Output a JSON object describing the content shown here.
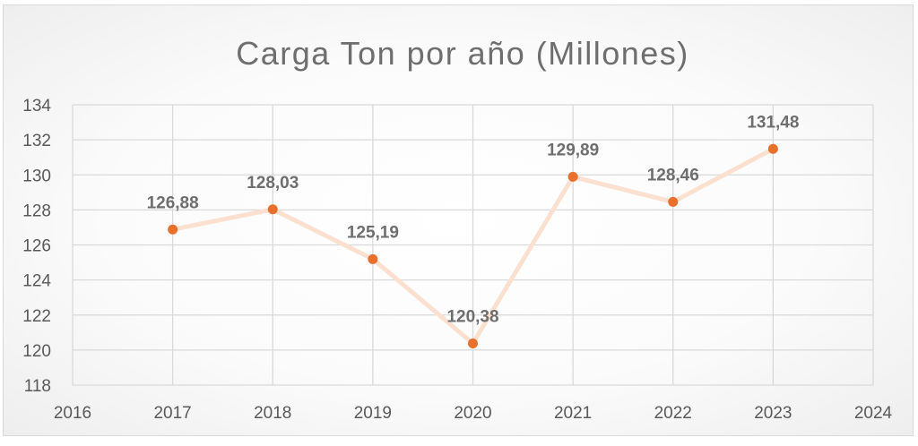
{
  "chart_data": {
    "type": "scatter",
    "title": "Carga Ton por año (Millones)",
    "xlabel": "",
    "ylabel": "",
    "xlim": [
      2016,
      2024
    ],
    "ylim": [
      118,
      134
    ],
    "x_ticks": [
      "2016",
      "2017",
      "2018",
      "2019",
      "2020",
      "2021",
      "2022",
      "2023",
      "2024"
    ],
    "y_ticks": [
      "118",
      "120",
      "122",
      "124",
      "126",
      "128",
      "130",
      "132",
      "134"
    ],
    "grid": true,
    "legend": "none",
    "series": [
      {
        "x": [
          2017,
          2018,
          2019,
          2020,
          2021,
          2022,
          2023
        ],
        "y": [
          126.88,
          128.03,
          125.19,
          120.38,
          129.89,
          128.46,
          131.48
        ],
        "labels": [
          "126,88",
          "128,03",
          "125,19",
          "120,38",
          "129,89",
          "128,46",
          "131,48"
        ],
        "marker_color": "#e8702a",
        "line_color": "#fbe0d0"
      }
    ]
  }
}
